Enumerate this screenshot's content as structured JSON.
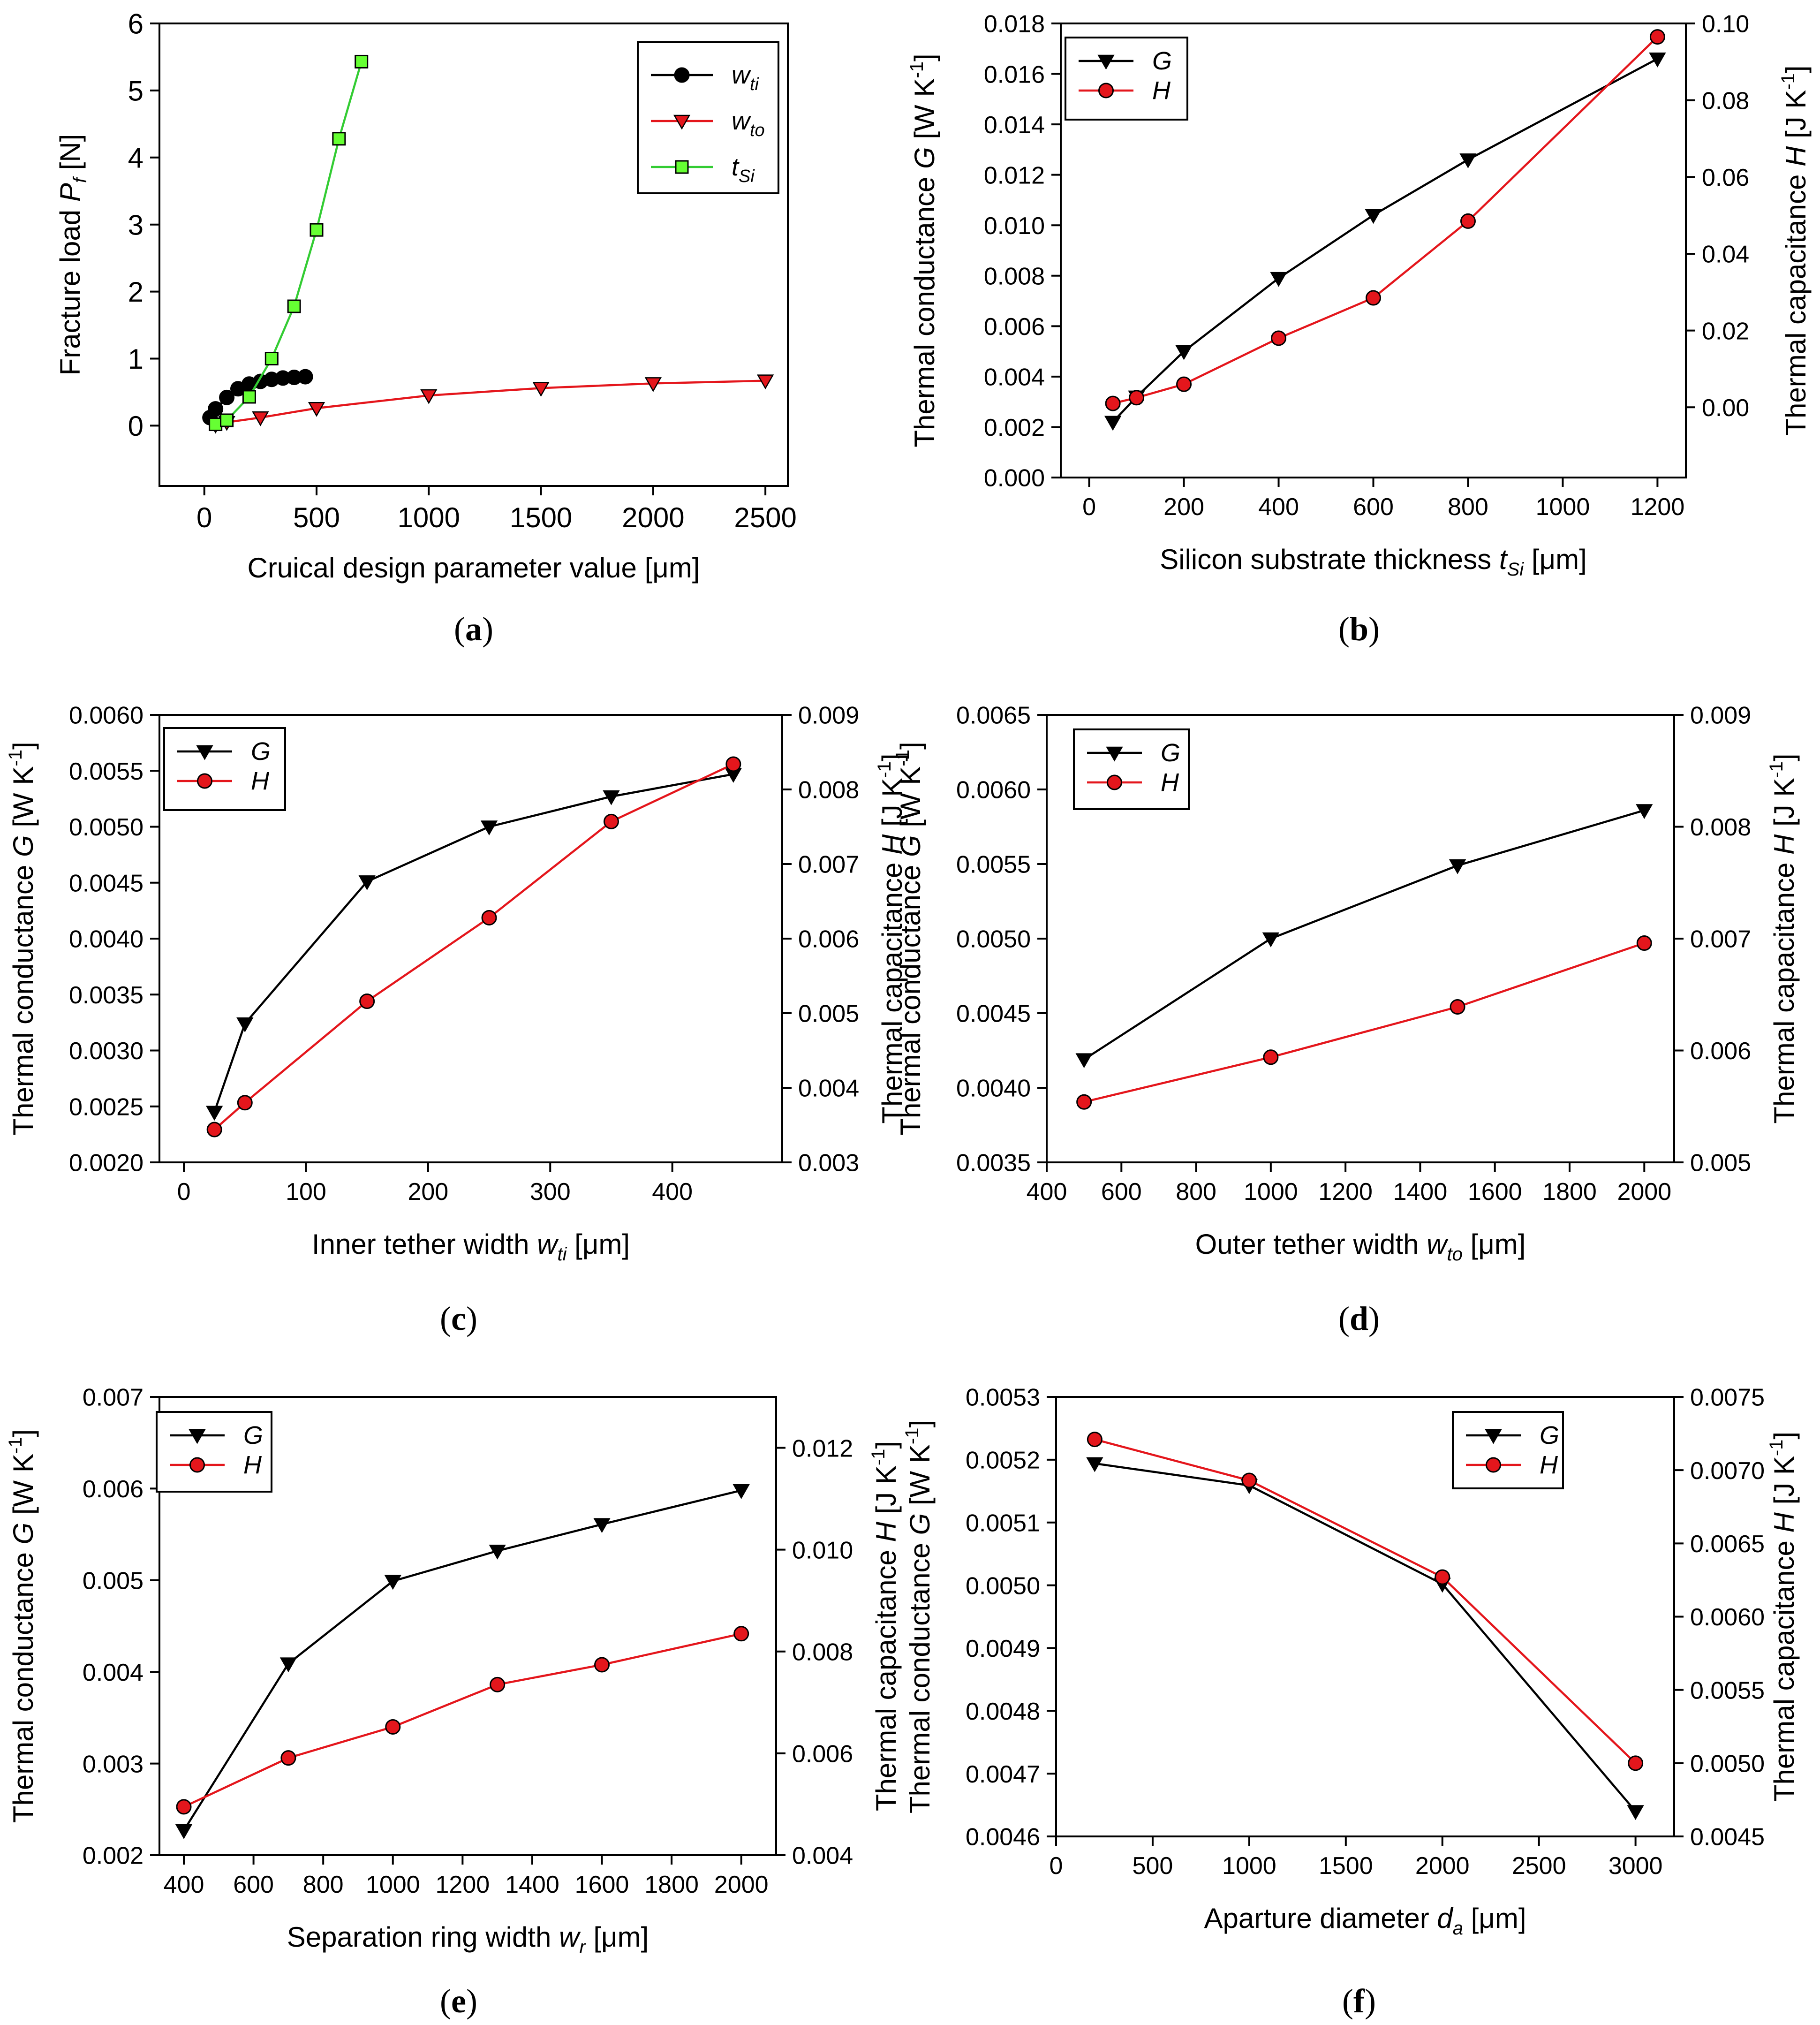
{
  "colors": {
    "black": "#000000",
    "red": "#e4161c",
    "green": "#33cc33",
    "greenFill": "#66ff33"
  },
  "chart_data": [
    {
      "id": "a",
      "type": "line",
      "caption": {
        "open": "(",
        "letter": "a",
        "close": ")"
      },
      "xlabel": {
        "main": "Cruical design parameter value [μm]"
      },
      "ylabel": {
        "pre": "Fracture load ",
        "sym": "P",
        "sub": "f",
        "post": " [N]"
      },
      "xlim": [
        -200,
        2600
      ],
      "ylim": [
        -0.9,
        6
      ],
      "xticks": [
        "0",
        "500",
        "1000",
        "1500",
        "2000",
        "2500"
      ],
      "xtick_values": [
        0,
        500,
        1000,
        1500,
        2000,
        2500
      ],
      "yticks": [
        "0",
        "1",
        "2",
        "3",
        "4",
        "5",
        "6"
      ],
      "ytick_values": [
        0,
        1,
        2,
        3,
        4,
        5,
        6
      ],
      "legend": {
        "position": "top-right"
      },
      "series": [
        {
          "name": "w",
          "sub": "ti",
          "color": "#000000",
          "marker": "circle",
          "axis": "left",
          "x": [
            25,
            50,
            100,
            150,
            200,
            250,
            300,
            350,
            400,
            450
          ],
          "y": [
            0.12,
            0.25,
            0.42,
            0.55,
            0.62,
            0.66,
            0.69,
            0.71,
            0.72,
            0.73
          ]
        },
        {
          "name": "w",
          "sub": "to",
          "color": "#e4161c",
          "marker": "triangle",
          "axis": "left",
          "x": [
            50,
            100,
            250,
            500,
            1000,
            1500,
            2000,
            2500
          ],
          "y": [
            0.01,
            0.05,
            0.12,
            0.26,
            0.45,
            0.56,
            0.63,
            0.67
          ]
        },
        {
          "name": "t",
          "sub": "Si",
          "color": "#33cc33",
          "marker": "square",
          "axis": "left",
          "x": [
            50,
            100,
            200,
            300,
            400,
            500,
            600,
            700
          ],
          "y": [
            0.02,
            0.08,
            0.43,
            1.0,
            1.78,
            2.92,
            4.28,
            5.43
          ]
        }
      ]
    },
    {
      "id": "b",
      "type": "line",
      "caption": {
        "open": "(",
        "letter": "b",
        "close": ")"
      },
      "xlabel": {
        "main": "Silicon substrate thickness ",
        "sym": "t",
        "sub": "Si",
        "post": " [μm]"
      },
      "ylabel": {
        "pre": "Thermal conductance ",
        "sym": "G",
        "post": " [W K",
        "sup": "-1",
        "end": "]"
      },
      "ylabel2": {
        "pre": "Thermal capacitance ",
        "sym": "H",
        "post": " [J K",
        "sup": "-1",
        "end": "]"
      },
      "xlim": [
        -60,
        1260
      ],
      "ylim": [
        0,
        0.018
      ],
      "y2lim": [
        -0.0183,
        0.1
      ],
      "xticks": [
        "0",
        "200",
        "400",
        "600",
        "800",
        "1000",
        "1200"
      ],
      "xtick_values": [
        0,
        200,
        400,
        600,
        800,
        1000,
        1200
      ],
      "yticks": [
        "0.000",
        "0.002",
        "0.004",
        "0.006",
        "0.008",
        "0.010",
        "0.012",
        "0.014",
        "0.016",
        "0.018"
      ],
      "ytick_values": [
        0,
        0.002,
        0.004,
        0.006,
        0.008,
        0.01,
        0.012,
        0.014,
        0.016,
        0.018
      ],
      "y2ticks": [
        "0.00",
        "0.02",
        "0.04",
        "0.06",
        "0.08",
        "0.10"
      ],
      "y2tick_values": [
        0,
        0.02,
        0.04,
        0.06,
        0.08,
        0.1
      ],
      "legend": {
        "position": "top-left"
      },
      "series": [
        {
          "name": "G",
          "color": "#000000",
          "marker": "triangle",
          "axis": "left",
          "x": [
            50,
            100,
            200,
            400,
            600,
            800,
            1200
          ],
          "y": [
            0.0022,
            0.0032,
            0.005,
            0.0079,
            0.0104,
            0.0126,
            0.0166
          ]
        },
        {
          "name": "H",
          "color": "#e4161c",
          "marker": "circle",
          "axis": "right",
          "x": [
            50,
            100,
            200,
            400,
            600,
            800,
            1200
          ],
          "y": [
            0.001,
            0.0025,
            0.006,
            0.018,
            0.0285,
            0.0485,
            0.0965
          ]
        }
      ]
    },
    {
      "id": "c",
      "type": "line",
      "caption": {
        "open": "(",
        "letter": "c",
        "close": ")"
      },
      "xlabel": {
        "main": "Inner tether width ",
        "sym": "w",
        "sub": "ti",
        "post": " [μm]"
      },
      "ylabel": {
        "pre": "Thermal conductance ",
        "sym": "G",
        "post": " [W K",
        "sup": "-1",
        "end": "]"
      },
      "ylabel2": {
        "pre": "Thermal capacitance ",
        "sym": "H",
        "post": " [J K",
        "sup": "-1",
        "end": "]"
      },
      "xlim": [
        -20,
        490
      ],
      "ylim": [
        0.002,
        0.006
      ],
      "y2lim": [
        0.003,
        0.009
      ],
      "xticks": [
        "0",
        "100",
        "200",
        "300",
        "400"
      ],
      "xtick_values": [
        0,
        100,
        200,
        300,
        400
      ],
      "yticks": [
        "0.0020",
        "0.0025",
        "0.0030",
        "0.0035",
        "0.0040",
        "0.0045",
        "0.0050",
        "0.0055",
        "0.0060"
      ],
      "ytick_values": [
        0.002,
        0.0025,
        0.003,
        0.0035,
        0.004,
        0.0045,
        0.005,
        0.0055,
        0.006
      ],
      "y2ticks": [
        "0.003",
        "0.004",
        "0.005",
        "0.006",
        "0.007",
        "0.008",
        "0.009"
      ],
      "y2tick_values": [
        0.003,
        0.004,
        0.005,
        0.006,
        0.007,
        0.008,
        0.009
      ],
      "legend": {
        "position": "top-left"
      },
      "series": [
        {
          "name": "G",
          "color": "#000000",
          "marker": "triangle",
          "axis": "left",
          "x": [
            25,
            50,
            150,
            250,
            350,
            450
          ],
          "y": [
            0.00245,
            0.00324,
            0.00451,
            0.005,
            0.00527,
            0.00547
          ]
        },
        {
          "name": "H",
          "color": "#e4161c",
          "marker": "circle",
          "axis": "right",
          "x": [
            25,
            50,
            150,
            250,
            350,
            450
          ],
          "y": [
            0.00344,
            0.0038,
            0.00516,
            0.00628,
            0.00757,
            0.00834
          ]
        }
      ]
    },
    {
      "id": "d",
      "type": "line",
      "caption": {
        "open": "(",
        "letter": "d",
        "close": ")"
      },
      "xlabel": {
        "main": "Outer tether width ",
        "sym": "w",
        "sub": "to",
        "post": " [μm]"
      },
      "ylabel": {
        "pre": "Thermal conductance ",
        "sym": "G",
        "post": " [W K",
        "sup": "-1",
        "end": "]"
      },
      "ylabel2": {
        "pre": "Thermal capacitance ",
        "sym": "H",
        "post": " [J K",
        "sup": "-1",
        "end": "]"
      },
      "xlim": [
        400,
        2080
      ],
      "ylim": [
        0.0035,
        0.0065
      ],
      "y2lim": [
        0.005,
        0.009
      ],
      "xticks": [
        "400",
        "600",
        "800",
        "1000",
        "1200",
        "1400",
        "1600",
        "1800",
        "2000"
      ],
      "xtick_values": [
        400,
        600,
        800,
        1000,
        1200,
        1400,
        1600,
        1800,
        2000
      ],
      "yticks": [
        "0.0035",
        "0.0040",
        "0.0045",
        "0.0050",
        "0.0055",
        "0.0060",
        "0.0065"
      ],
      "ytick_values": [
        0.0035,
        0.004,
        0.0045,
        0.005,
        0.0055,
        0.006,
        0.0065
      ],
      "y2ticks": [
        "0.005",
        "0.006",
        "0.007",
        "0.008",
        "0.009"
      ],
      "y2tick_values": [
        0.005,
        0.006,
        0.007,
        0.008,
        0.009
      ],
      "legend": {
        "position": "top-left"
      },
      "series": [
        {
          "name": "G",
          "color": "#000000",
          "marker": "triangle",
          "axis": "left",
          "x": [
            500,
            1000,
            1500,
            2000
          ],
          "y": [
            0.00419,
            0.005,
            0.00549,
            0.00586
          ]
        },
        {
          "name": "H",
          "color": "#e4161c",
          "marker": "circle",
          "axis": "right",
          "x": [
            500,
            1000,
            1500,
            2000
          ],
          "y": [
            0.00554,
            0.00594,
            0.00639,
            0.00696
          ]
        }
      ]
    },
    {
      "id": "e",
      "type": "line",
      "caption": {
        "open": "(",
        "letter": "e",
        "close": ")"
      },
      "xlabel": {
        "main": "Separation ring width ",
        "sym": "w",
        "sub": "r",
        "post": " [μm]"
      },
      "ylabel": {
        "pre": "Thermal conductance ",
        "sym": "G",
        "post": " [W K",
        "sup": "-1",
        "end": "]"
      },
      "ylabel2": {
        "pre": "Thermal capacitance ",
        "sym": "H",
        "post": " [J K",
        "sup": "-1",
        "end": "]"
      },
      "xlim": [
        330,
        2100
      ],
      "ylim": [
        0.002,
        0.007
      ],
      "y2lim": [
        0.004,
        0.013
      ],
      "xticks": [
        "400",
        "600",
        "800",
        "1000",
        "1200",
        "1400",
        "1600",
        "1800",
        "2000"
      ],
      "xtick_values": [
        400,
        600,
        800,
        1000,
        1200,
        1400,
        1600,
        1800,
        2000
      ],
      "yticks": [
        "0.002",
        "0.003",
        "0.004",
        "0.005",
        "0.006",
        "0.007"
      ],
      "ytick_values": [
        0.002,
        0.003,
        0.004,
        0.005,
        0.006,
        0.007
      ],
      "y2ticks": [
        "0.004",
        "0.006",
        "0.008",
        "0.010",
        "0.012"
      ],
      "y2tick_values": [
        0.004,
        0.006,
        0.008,
        0.01,
        0.012
      ],
      "legend": {
        "position": "top-left"
      },
      "series": [
        {
          "name": "G",
          "color": "#000000",
          "marker": "triangle",
          "axis": "left",
          "x": [
            400,
            700,
            1000,
            1300,
            1600,
            2000
          ],
          "y": [
            0.00227,
            0.00409,
            0.00499,
            0.00532,
            0.00561,
            0.00598
          ]
        },
        {
          "name": "H",
          "color": "#e4161c",
          "marker": "circle",
          "axis": "right",
          "x": [
            400,
            700,
            1000,
            1300,
            1600,
            2000
          ],
          "y": [
            0.00495,
            0.00591,
            0.00652,
            0.00735,
            0.00774,
            0.00835
          ]
        }
      ]
    },
    {
      "id": "f",
      "type": "line",
      "caption": {
        "open": "(",
        "letter": "f",
        "close": ")"
      },
      "xlabel": {
        "main": "Aparture diameter ",
        "sym": "d",
        "sub": "a",
        "post": " [μm]"
      },
      "ylabel": {
        "pre": "Thermal conductance ",
        "sym": "G",
        "post": " [W K",
        "sup": "-1",
        "end": "]"
      },
      "ylabel2": {
        "pre": "Thermal capacitance ",
        "sym": "H",
        "post": " [J K",
        "sup": "-1",
        "end": "]"
      },
      "xlim": [
        0,
        3200
      ],
      "ylim": [
        0.0046,
        0.0053
      ],
      "y2lim": [
        0.0045,
        0.0075
      ],
      "xticks": [
        "0",
        "500",
        "1000",
        "1500",
        "2000",
        "2500",
        "3000"
      ],
      "xtick_values": [
        0,
        500,
        1000,
        1500,
        2000,
        2500,
        3000
      ],
      "yticks": [
        "0.0046",
        "0.0047",
        "0.0048",
        "0.0049",
        "0.0050",
        "0.0051",
        "0.0052",
        "0.0053"
      ],
      "ytick_values": [
        0.0046,
        0.0047,
        0.0048,
        0.0049,
        0.005,
        0.0051,
        0.0052,
        0.0053
      ],
      "y2ticks": [
        "0.0045",
        "0.0050",
        "0.0055",
        "0.0060",
        "0.0065",
        "0.0070",
        "0.0075"
      ],
      "y2tick_values": [
        0.0045,
        0.005,
        0.0055,
        0.006,
        0.0065,
        0.007,
        0.0075
      ],
      "legend": {
        "position": "top-right"
      },
      "series": [
        {
          "name": "G",
          "color": "#000000",
          "marker": "triangle",
          "axis": "left",
          "x": [
            200,
            1000,
            2000,
            3000
          ],
          "y": [
            0.005194,
            0.005159,
            0.005002,
            0.00464
          ]
        },
        {
          "name": "H",
          "color": "#e4161c",
          "marker": "circle",
          "axis": "right",
          "x": [
            200,
            1000,
            2000,
            3000
          ],
          "y": [
            0.00721,
            0.00693,
            0.00627,
            0.005
          ]
        }
      ]
    }
  ]
}
